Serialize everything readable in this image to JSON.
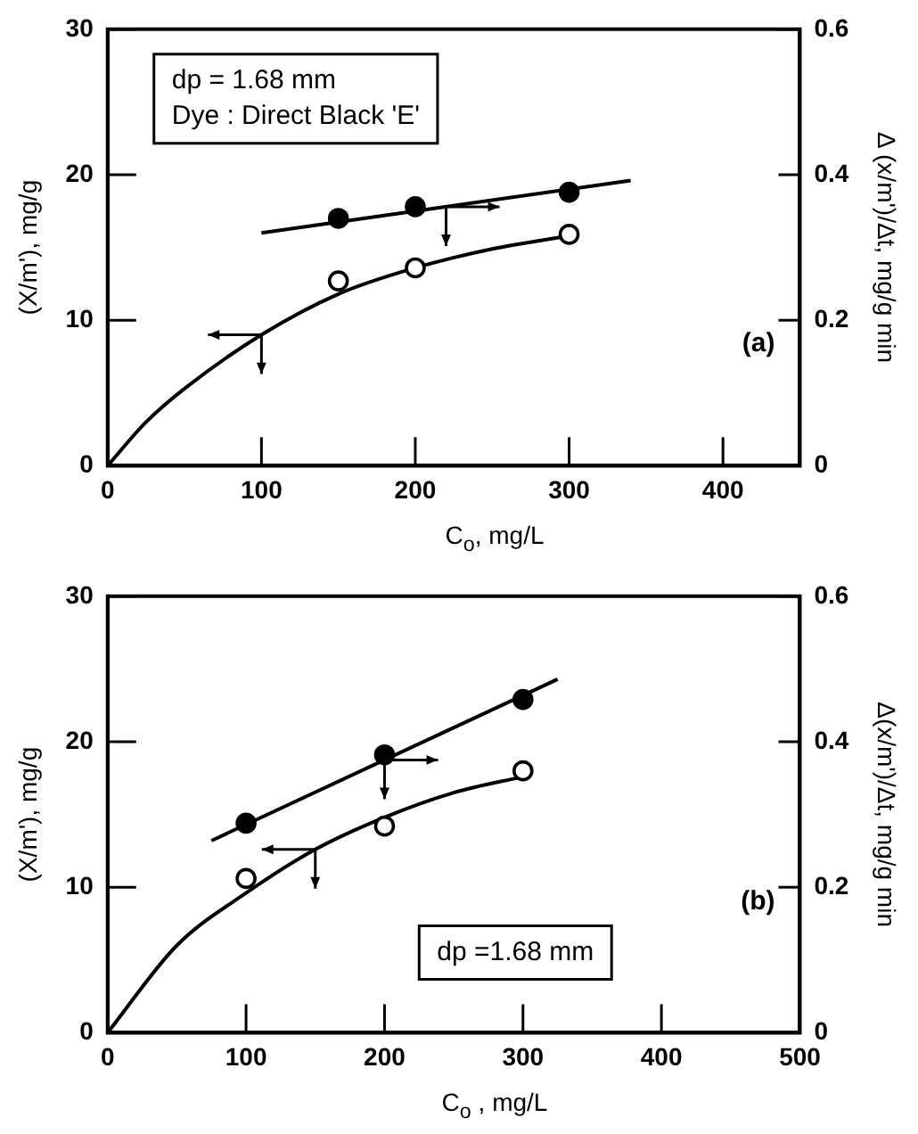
{
  "chart_data": [
    {
      "type": "scatter",
      "xlabel": "C$_{o}$, mg/L",
      "ylabel": "(X/m'), mg/g",
      "y2label": "Δ (x/m')/Δt, mg/g min",
      "xlim": [
        0,
        450
      ],
      "xticks": [
        0,
        100,
        200,
        300,
        400
      ],
      "ylim": [
        0,
        30
      ],
      "yticks": [
        0,
        10,
        20,
        30
      ],
      "y2lim": [
        0,
        0.6
      ],
      "y2ticks": [
        0,
        0.2,
        0.4,
        0.6
      ],
      "grid": false,
      "legend": false,
      "marker": "circle",
      "annotations": [
        "dp = 1.68 mm",
        "Dye : Direct Black 'E'",
        "(a)"
      ],
      "series": [
        {
          "type": "scatter",
          "color": "#000000",
          "x": [
            150,
            200,
            300
          ],
          "values": [
            12.7,
            13.6,
            15.9
          ]
        },
        {
          "type": "scatter",
          "color": "#000000",
          "axis": "y2",
          "x": [
            150,
            200,
            300
          ],
          "values": [
            0.34,
            0.356,
            0.376
          ]
        },
        {
          "type": "line",
          "color": "#000000",
          "marker": "none",
          "line_style": "solid",
          "x": [
            0,
            25,
            50,
            100,
            150,
            200,
            250,
            300
          ],
          "values": [
            0,
            3,
            5.3,
            9,
            11.8,
            13.6,
            14.9,
            15.8
          ]
        },
        {
          "type": "line",
          "color": "#000000",
          "marker": "none",
          "line_style": "solid",
          "axis": "y2",
          "x": [
            100,
            340
          ],
          "values": [
            0.32,
            0.392
          ]
        }
      ]
    },
    {
      "type": "scatter",
      "xlabel": "C$_{o}$ ,  mg/L",
      "ylabel": "(X/m'), mg/g",
      "y2label": "Δ(x/m')/Δt, mg/g min",
      "xlim": [
        0,
        500
      ],
      "xticks": [
        0,
        100,
        200,
        300,
        400,
        500
      ],
      "ylim": [
        0,
        30
      ],
      "yticks": [
        0,
        10,
        20,
        30
      ],
      "y2lim": [
        0,
        0.6
      ],
      "y2ticks": [
        0,
        0.2,
        0.4,
        0.6
      ],
      "grid": false,
      "legend": false,
      "marker": "circle",
      "annotations": [
        "dp =1.68 mm",
        "(b)"
      ],
      "series": [
        {
          "type": "scatter",
          "color": "#000000",
          "x": [
            100,
            200,
            300
          ],
          "values": [
            10.6,
            14.2,
            18.0
          ]
        },
        {
          "type": "scatter",
          "color": "#000000",
          "axis": "y2",
          "x": [
            100,
            200,
            300
          ],
          "values": [
            0.288,
            0.382,
            0.458
          ]
        },
        {
          "type": "line",
          "color": "#000000",
          "marker": "none",
          "line_style": "solid",
          "x": [
            0,
            50,
            100,
            150,
            200,
            250,
            300
          ],
          "values": [
            0,
            6,
            9.6,
            12.6,
            14.8,
            16.5,
            17.6
          ]
        },
        {
          "type": "line",
          "color": "#000000",
          "marker": "none",
          "line_style": "solid",
          "axis": "y2",
          "x": [
            75,
            325
          ],
          "values": [
            0.264,
            0.486
          ]
        }
      ]
    }
  ]
}
